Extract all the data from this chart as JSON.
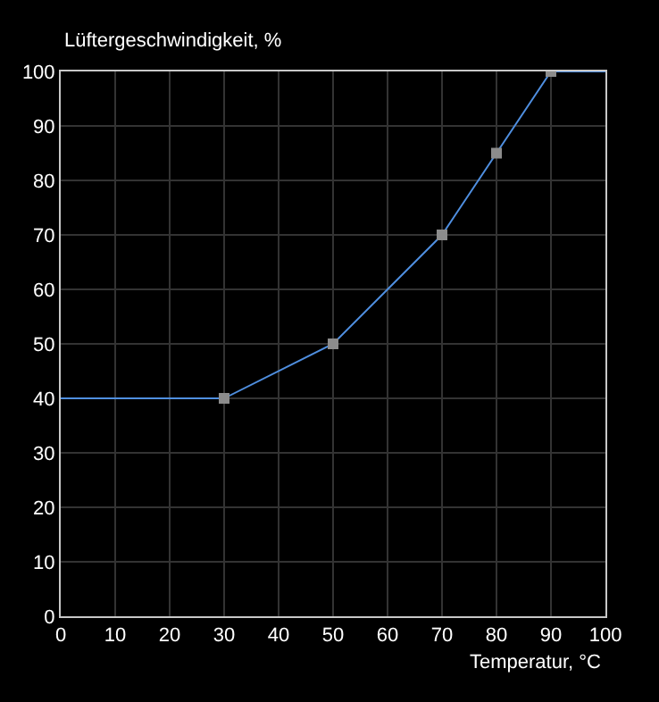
{
  "chart_data": {
    "type": "line",
    "xlabel": "Temperatur, °C",
    "ylabel": "Lüftergeschwindigkeit, %",
    "x": [
      0,
      30,
      50,
      70,
      80,
      90,
      100
    ],
    "series": [
      {
        "color": "#4f8fe0",
        "values": [
          40,
          40,
          50,
          70,
          85,
          100,
          100
        ],
        "marker": "none"
      },
      {
        "type": "scatter",
        "color": "#8c8c8c",
        "x": [
          30,
          50,
          70,
          80,
          90
        ],
        "values": [
          40,
          50,
          70,
          85,
          100
        ],
        "marker": "square"
      }
    ],
    "xlim": [
      0,
      100
    ],
    "ylim": [
      0,
      100
    ],
    "xticks": [
      0,
      10,
      20,
      30,
      40,
      50,
      60,
      70,
      80,
      90,
      100
    ],
    "yticks": [
      0,
      10,
      20,
      30,
      40,
      50,
      60,
      70,
      80,
      90,
      100
    ],
    "grid": true
  }
}
